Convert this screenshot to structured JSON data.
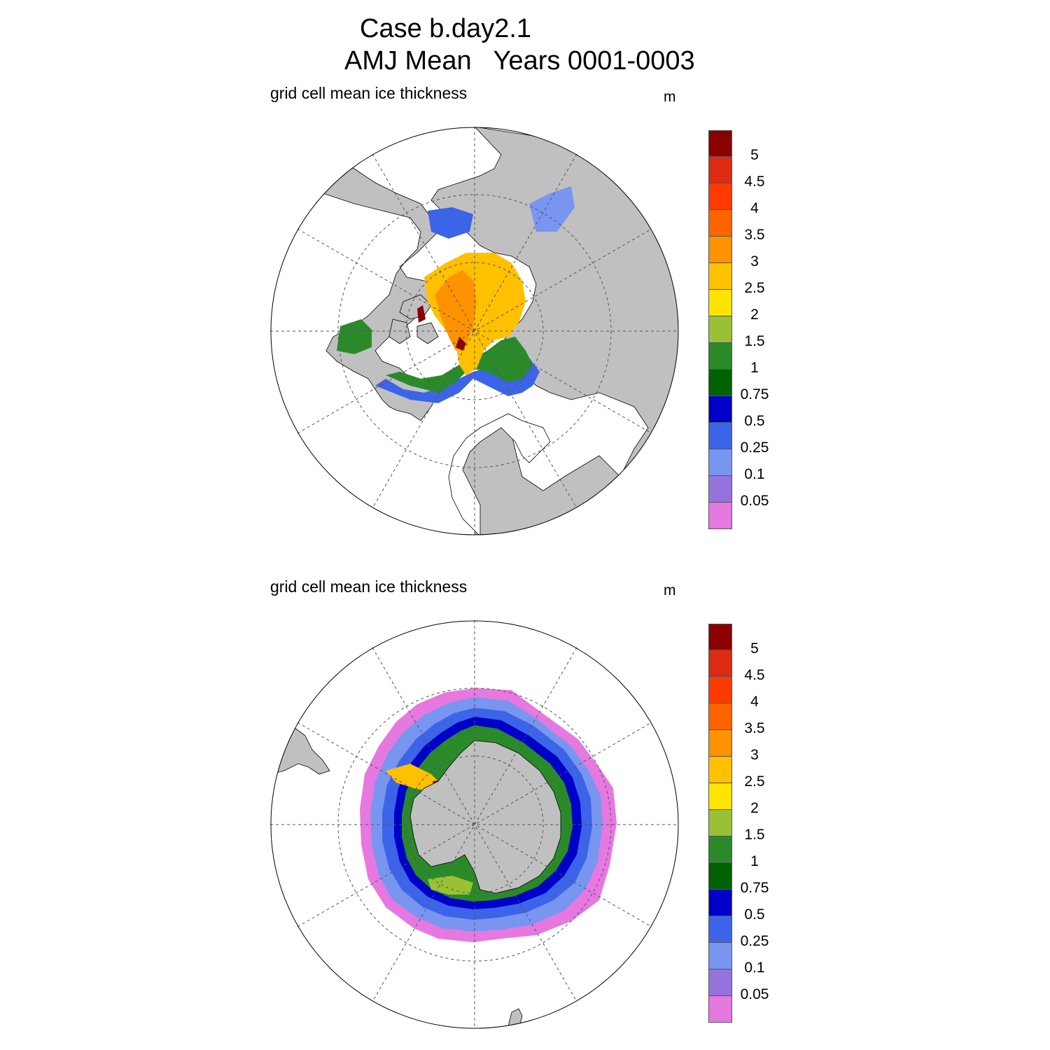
{
  "figure": {
    "title_line1": "Case b.day2.1",
    "title_line2": "AMJ Mean   Years 0001-0003"
  },
  "panels": [
    {
      "name": "arctic",
      "label": "grid cell mean ice thickness",
      "units": "m"
    },
    {
      "name": "antarctic",
      "label": "grid cell mean ice thickness",
      "units": "m"
    }
  ],
  "legend": {
    "units": "m",
    "levels": [
      "5",
      "4.5",
      "4",
      "3.5",
      "3",
      "2.5",
      "2",
      "1.5",
      "1",
      "0.75",
      "0.5",
      "0.25",
      "0.1",
      "0.05"
    ],
    "colors": [
      "#8b0000",
      "#dd2a10",
      "#ff3a00",
      "#ff6400",
      "#ff9200",
      "#ffc000",
      "#ffe400",
      "#9ac133",
      "#2a8a2a",
      "#006200",
      "#0000c8",
      "#3c64e8",
      "#7896f0",
      "#9474dc",
      "#e678e0"
    ]
  },
  "colors": {
    "land": "#c0c0c0",
    "ocean": "#ffffff",
    "gridline": "#555555"
  }
}
